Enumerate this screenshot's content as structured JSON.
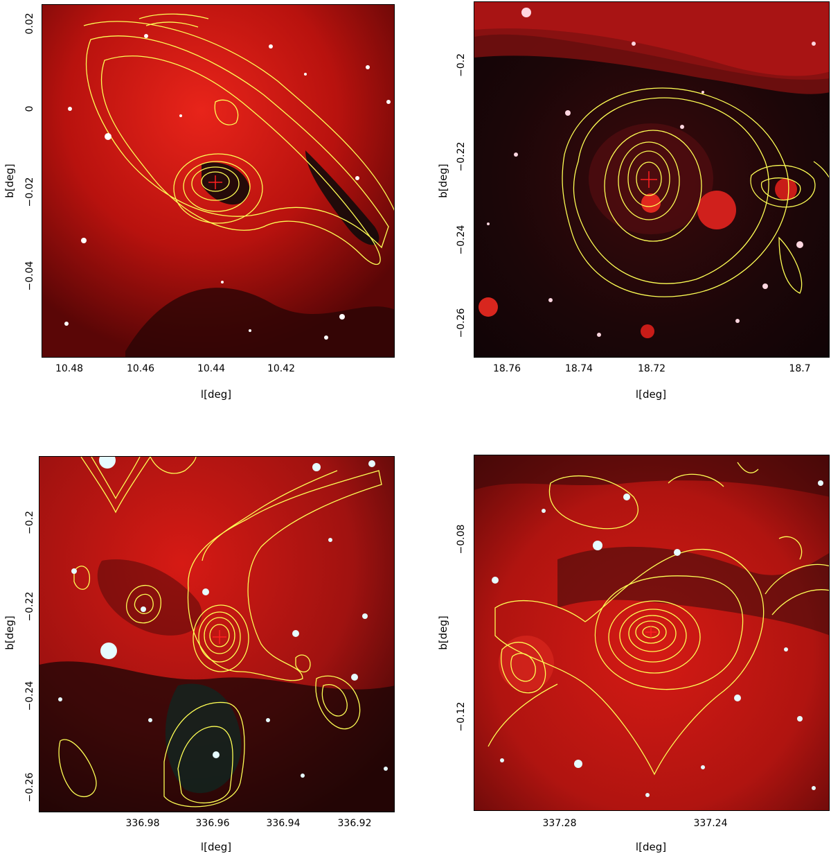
{
  "panels": [
    {
      "xlabel": "l[deg]",
      "ylabel": "b[deg]",
      "xticks": [
        "10.48",
        "10.46",
        "10.44",
        "10.42"
      ],
      "yticks": [
        "0.02",
        "0",
        "−0.02",
        "−0.04"
      ]
    },
    {
      "xlabel": "l[deg]",
      "ylabel": "b[deg]",
      "xticks": [
        "18.76",
        "18.74",
        "18.72",
        "18.7"
      ],
      "yticks": [
        "−0.2",
        "−0.22",
        "−0.24",
        "−0.26"
      ]
    },
    {
      "xlabel": "l[deg]",
      "ylabel": "b[deg]",
      "xticks": [
        "336.98",
        "336.96",
        "336.94",
        "336.92"
      ],
      "yticks": [
        "−0.2",
        "−0.22",
        "−0.24",
        "−0.26"
      ]
    },
    {
      "xlabel": "l[deg]",
      "ylabel": "b[deg]",
      "xticks": [
        "337.28",
        "337.24"
      ],
      "yticks": [
        "−0.08",
        "−0.12"
      ]
    }
  ],
  "colors": {
    "background_red": "#c0140f",
    "contour": "#ffff55",
    "marker": "#ff2020",
    "dark_cloud": "#0a0a0a"
  }
}
